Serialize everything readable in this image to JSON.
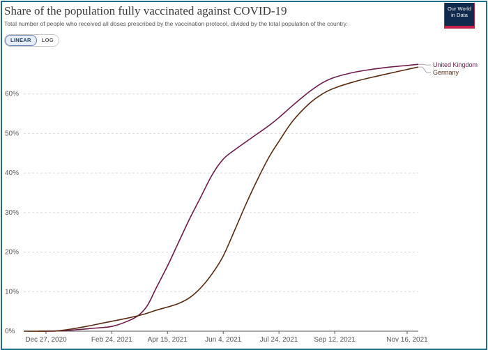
{
  "header": {
    "title": "Share of the population fully vaccinated against COVID-19",
    "subtitle": "Total number of people who received all doses prescribed by the vaccination protocol, divided by the total population of the country.",
    "logo_line1": "Our World",
    "logo_line2": "in Data"
  },
  "scale_toggle": {
    "linear_label": "LINEAR",
    "log_label": "LOG",
    "selected": "LINEAR"
  },
  "colors": {
    "united_kingdom": "#6b1a4a",
    "germany": "#5a2a10",
    "grid": "#d9d9d9",
    "axis": "#555555",
    "frame": "#1b6f87"
  },
  "chart_data": {
    "type": "line",
    "title": "Share of the population fully vaccinated against COVID-19",
    "xlabel": "",
    "ylabel": "",
    "x_range": [
      "2020-12-07",
      "2021-11-26"
    ],
    "ylim": [
      0,
      70
    ],
    "y_ticks": [
      0,
      10,
      20,
      30,
      40,
      50,
      60
    ],
    "y_tick_labels": [
      "0%",
      "10%",
      "20%",
      "30%",
      "40%",
      "50%",
      "60%"
    ],
    "x_ticks": [
      "2020-12-27",
      "2021-02-24",
      "2021-04-15",
      "2021-06-04",
      "2021-07-24",
      "2021-09-12",
      "2021-11-16"
    ],
    "x_tick_labels": [
      "Dec 27, 2020",
      "Feb 24, 2021",
      "Apr 15, 2021",
      "Jun 4, 2021",
      "Jul 24, 2021",
      "Sep 12, 2021",
      "Nov 16, 2021"
    ],
    "grid": "horizontal dashed",
    "legend": "right, end of lines",
    "series": [
      {
        "name": "United Kingdom",
        "color": "#6b1a4a",
        "points": [
          [
            "2020-12-20",
            0.0
          ],
          [
            "2021-01-10",
            0.1
          ],
          [
            "2021-01-25",
            0.4
          ],
          [
            "2021-02-10",
            0.8
          ],
          [
            "2021-02-24",
            1.2
          ],
          [
            "2021-03-10",
            2.5
          ],
          [
            "2021-03-20",
            4.0
          ],
          [
            "2021-03-28",
            6.5
          ],
          [
            "2021-04-05",
            11.0
          ],
          [
            "2021-04-15",
            16.5
          ],
          [
            "2021-04-25",
            22.5
          ],
          [
            "2021-05-05",
            28.5
          ],
          [
            "2021-05-15",
            34.0
          ],
          [
            "2021-05-25",
            39.5
          ],
          [
            "2021-06-04",
            43.5
          ],
          [
            "2021-06-15",
            46.0
          ],
          [
            "2021-06-30",
            49.0
          ],
          [
            "2021-07-15",
            52.0
          ],
          [
            "2021-07-24",
            54.0
          ],
          [
            "2021-08-05",
            57.0
          ],
          [
            "2021-08-20",
            60.5
          ],
          [
            "2021-09-01",
            62.8
          ],
          [
            "2021-09-12",
            64.2
          ],
          [
            "2021-09-30",
            65.5
          ],
          [
            "2021-10-15",
            66.2
          ],
          [
            "2021-11-01",
            66.8
          ],
          [
            "2021-11-16",
            67.2
          ],
          [
            "2021-11-26",
            67.5
          ]
        ]
      },
      {
        "name": "Germany",
        "color": "#5a2a10",
        "points": [
          [
            "2020-12-07",
            0.0
          ],
          [
            "2021-01-01",
            0.0
          ],
          [
            "2021-01-10",
            0.2
          ],
          [
            "2021-01-20",
            0.6
          ],
          [
            "2021-02-01",
            1.2
          ],
          [
            "2021-02-15",
            2.0
          ],
          [
            "2021-02-24",
            2.5
          ],
          [
            "2021-03-10",
            3.3
          ],
          [
            "2021-03-25",
            4.3
          ],
          [
            "2021-04-05",
            5.3
          ],
          [
            "2021-04-15",
            6.1
          ],
          [
            "2021-04-25",
            7.0
          ],
          [
            "2021-05-05",
            8.5
          ],
          [
            "2021-05-15",
            11.0
          ],
          [
            "2021-05-25",
            14.5
          ],
          [
            "2021-06-04",
            19.0
          ],
          [
            "2021-06-15",
            26.0
          ],
          [
            "2021-06-25",
            32.5
          ],
          [
            "2021-07-05",
            38.5
          ],
          [
            "2021-07-15",
            44.0
          ],
          [
            "2021-07-24",
            48.0
          ],
          [
            "2021-08-05",
            53.0
          ],
          [
            "2021-08-20",
            57.5
          ],
          [
            "2021-09-01",
            60.0
          ],
          [
            "2021-09-12",
            61.5
          ],
          [
            "2021-10-01",
            63.2
          ],
          [
            "2021-10-20",
            64.5
          ],
          [
            "2021-11-05",
            65.5
          ],
          [
            "2021-11-16",
            66.2
          ],
          [
            "2021-11-26",
            66.8
          ]
        ]
      }
    ]
  }
}
